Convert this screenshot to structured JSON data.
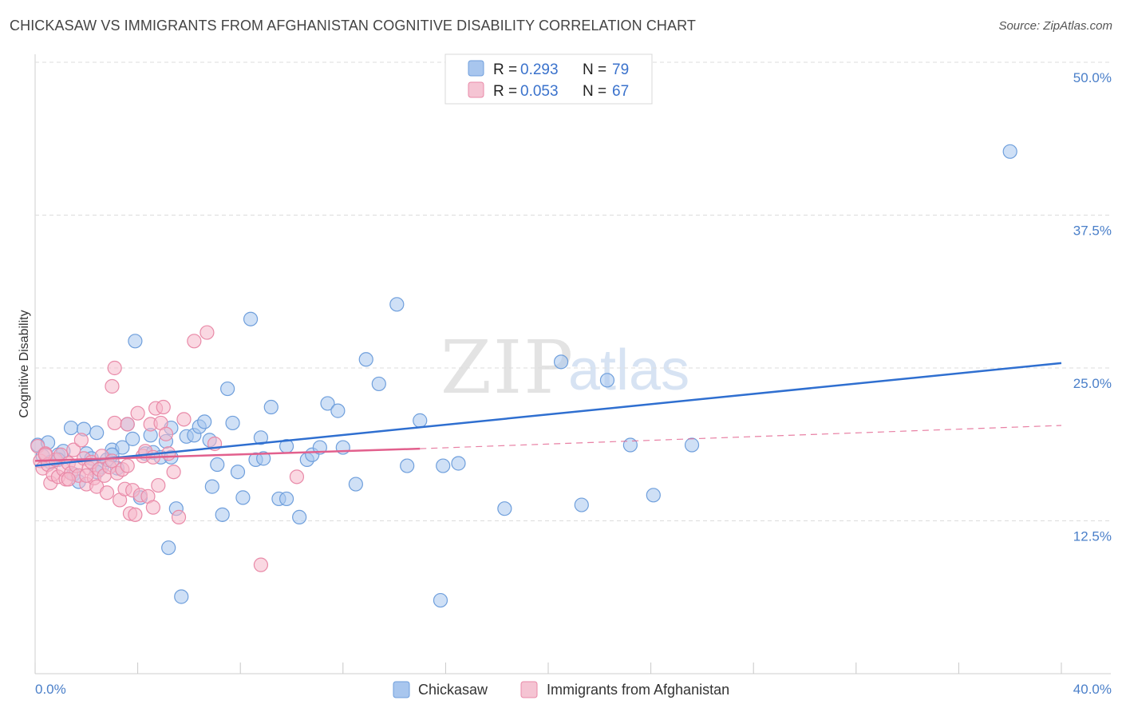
{
  "title": "CHICKASAW VS IMMIGRANTS FROM AFGHANISTAN COGNITIVE DISABILITY CORRELATION CHART",
  "source": "Source: ZipAtlas.com",
  "watermark": {
    "zip": "ZIP",
    "atlas": "atlas"
  },
  "colors": {
    "blue_fill": "#a8c6ee",
    "blue_stroke": "#6f9fdc",
    "blue_line": "#2f6fd0",
    "pink_fill": "#f5b8cb",
    "pink_stroke": "#e98aa8",
    "pink_line": "#e2608d",
    "value_text": "#3a72cc",
    "tick_text": "#4a7fc9",
    "grid": "#dcdcdc"
  },
  "legend_top": [
    {
      "r_label": "R = ",
      "r_value": "0.293",
      "n_label": "N = ",
      "n_value": "79",
      "series": "blue"
    },
    {
      "r_label": "R = ",
      "r_value": "0.053",
      "n_label": "N = ",
      "n_value": "67",
      "series": "pink"
    }
  ],
  "chart_data": {
    "type": "scatter",
    "title": "CHICKASAW VS IMMIGRANTS FROM AFGHANISTAN COGNITIVE DISABILITY CORRELATION CHART",
    "xlabel": "",
    "ylabel": "Cognitive Disability",
    "xlim": [
      0,
      40
    ],
    "ylim": [
      0,
      52.5
    ],
    "x_tick_labels": [
      "0.0%",
      "40.0%"
    ],
    "y_ticks": [
      12.5,
      25.0,
      37.5,
      50.0
    ],
    "y_tick_labels": [
      "12.5%",
      "25.0%",
      "37.5%",
      "50.0%"
    ],
    "grid": "horizontal dashed",
    "legend_position": "bottom-center",
    "series": [
      {
        "name": "Chickasaw",
        "color": "blue",
        "trend": {
          "x": [
            0,
            40
          ],
          "y": [
            17.0,
            25.4
          ],
          "style": "solid"
        },
        "points": [
          [
            0.1,
            18.7
          ],
          [
            0.3,
            17.8
          ],
          [
            0.5,
            18.9
          ],
          [
            0.6,
            17.3
          ],
          [
            0.9,
            17.9
          ],
          [
            1.1,
            18.2
          ],
          [
            1.4,
            20.1
          ],
          [
            1.5,
            16.3
          ],
          [
            1.7,
            15.7
          ],
          [
            1.9,
            20.0
          ],
          [
            2.0,
            18.0
          ],
          [
            2.2,
            17.6
          ],
          [
            2.4,
            19.7
          ],
          [
            2.6,
            16.9
          ],
          [
            2.8,
            17.5
          ],
          [
            3.0,
            18.3
          ],
          [
            3.2,
            16.8
          ],
          [
            3.4,
            18.5
          ],
          [
            3.6,
            20.4
          ],
          [
            3.8,
            19.2
          ],
          [
            3.9,
            27.2
          ],
          [
            4.1,
            14.4
          ],
          [
            4.3,
            18.0
          ],
          [
            4.5,
            19.5
          ],
          [
            4.6,
            18.1
          ],
          [
            4.9,
            17.7
          ],
          [
            5.1,
            19.0
          ],
          [
            5.2,
            10.3
          ],
          [
            5.3,
            20.1
          ],
          [
            5.5,
            13.5
          ],
          [
            5.7,
            6.3
          ],
          [
            5.9,
            19.4
          ],
          [
            6.2,
            19.5
          ],
          [
            6.4,
            20.2
          ],
          [
            6.6,
            20.6
          ],
          [
            6.9,
            15.3
          ],
          [
            7.1,
            17.1
          ],
          [
            7.3,
            13.0
          ],
          [
            7.5,
            23.3
          ],
          [
            7.7,
            20.5
          ],
          [
            7.9,
            16.5
          ],
          [
            8.1,
            14.4
          ],
          [
            8.4,
            29.0
          ],
          [
            8.6,
            17.5
          ],
          [
            8.8,
            19.3
          ],
          [
            9.2,
            21.8
          ],
          [
            9.5,
            14.3
          ],
          [
            9.8,
            18.6
          ],
          [
            10.3,
            12.8
          ],
          [
            10.6,
            17.5
          ],
          [
            10.8,
            17.9
          ],
          [
            11.1,
            18.5
          ],
          [
            11.4,
            22.1
          ],
          [
            11.8,
            21.5
          ],
          [
            12.0,
            18.5
          ],
          [
            12.5,
            15.5
          ],
          [
            12.9,
            25.7
          ],
          [
            13.4,
            23.7
          ],
          [
            14.1,
            30.2
          ],
          [
            14.5,
            17.0
          ],
          [
            15.0,
            20.7
          ],
          [
            15.9,
            17.0
          ],
          [
            16.5,
            17.2
          ],
          [
            18.3,
            13.5
          ],
          [
            20.5,
            25.5
          ],
          [
            21.3,
            13.8
          ],
          [
            22.3,
            24.0
          ],
          [
            23.2,
            18.7
          ],
          [
            24.1,
            14.6
          ],
          [
            25.6,
            18.7
          ],
          [
            38.0,
            42.7
          ],
          [
            0.9,
            17.5
          ],
          [
            2.4,
            16.5
          ],
          [
            3.0,
            17.9
          ],
          [
            5.3,
            17.7
          ],
          [
            6.8,
            19.1
          ],
          [
            8.9,
            17.6
          ],
          [
            9.8,
            14.3
          ],
          [
            15.8,
            6.0
          ]
        ]
      },
      {
        "name": "Immigrants from Afghanistan",
        "color": "pink",
        "trend": {
          "x": [
            0,
            15
          ],
          "y": [
            17.4,
            18.4
          ],
          "style": "solid",
          "extension_x": [
            15,
            40
          ],
          "extension_y": [
            18.4,
            20.3
          ]
        },
        "points": [
          [
            0.1,
            18.6
          ],
          [
            0.2,
            17.4
          ],
          [
            0.3,
            16.8
          ],
          [
            0.4,
            18.0
          ],
          [
            0.5,
            17.1
          ],
          [
            0.6,
            15.6
          ],
          [
            0.7,
            16.3
          ],
          [
            0.8,
            17.5
          ],
          [
            0.9,
            16.1
          ],
          [
            1.0,
            17.9
          ],
          [
            1.1,
            16.7
          ],
          [
            1.2,
            15.9
          ],
          [
            1.3,
            17.2
          ],
          [
            1.4,
            16.4
          ],
          [
            1.5,
            18.3
          ],
          [
            1.6,
            17.0
          ],
          [
            1.7,
            16.2
          ],
          [
            1.8,
            19.1
          ],
          [
            1.9,
            17.6
          ],
          [
            2.0,
            15.5
          ],
          [
            2.1,
            16.8
          ],
          [
            2.2,
            17.3
          ],
          [
            2.3,
            16.0
          ],
          [
            2.4,
            15.3
          ],
          [
            2.5,
            16.7
          ],
          [
            2.6,
            17.8
          ],
          [
            2.7,
            16.2
          ],
          [
            2.8,
            14.8
          ],
          [
            2.9,
            16.9
          ],
          [
            3.0,
            17.4
          ],
          [
            3.1,
            20.5
          ],
          [
            3.2,
            16.4
          ],
          [
            3.3,
            14.2
          ],
          [
            3.4,
            16.7
          ],
          [
            3.5,
            15.1
          ],
          [
            3.6,
            17.0
          ],
          [
            3.7,
            13.1
          ],
          [
            3.8,
            15.0
          ],
          [
            3.9,
            13.0
          ],
          [
            4.0,
            21.3
          ],
          [
            4.1,
            14.6
          ],
          [
            4.2,
            17.8
          ],
          [
            4.3,
            18.2
          ],
          [
            4.4,
            14.5
          ],
          [
            4.5,
            20.4
          ],
          [
            4.6,
            13.6
          ],
          [
            4.7,
            21.7
          ],
          [
            4.8,
            15.4
          ],
          [
            4.9,
            20.5
          ],
          [
            5.0,
            21.8
          ],
          [
            5.1,
            19.6
          ],
          [
            5.2,
            18.0
          ],
          [
            5.4,
            16.5
          ],
          [
            5.6,
            12.8
          ],
          [
            5.8,
            20.8
          ],
          [
            6.2,
            27.2
          ],
          [
            6.7,
            27.9
          ],
          [
            3.0,
            23.5
          ],
          [
            3.1,
            25.0
          ],
          [
            7.0,
            18.8
          ],
          [
            8.8,
            8.9
          ],
          [
            10.2,
            16.1
          ],
          [
            1.3,
            15.9
          ],
          [
            2.0,
            16.2
          ],
          [
            0.4,
            17.9
          ],
          [
            3.6,
            20.4
          ],
          [
            4.6,
            17.7
          ]
        ]
      }
    ]
  },
  "bottom_legend": [
    {
      "label": "Chickasaw",
      "series": "blue"
    },
    {
      "label": "Immigrants from Afghanistan",
      "series": "pink"
    }
  ]
}
